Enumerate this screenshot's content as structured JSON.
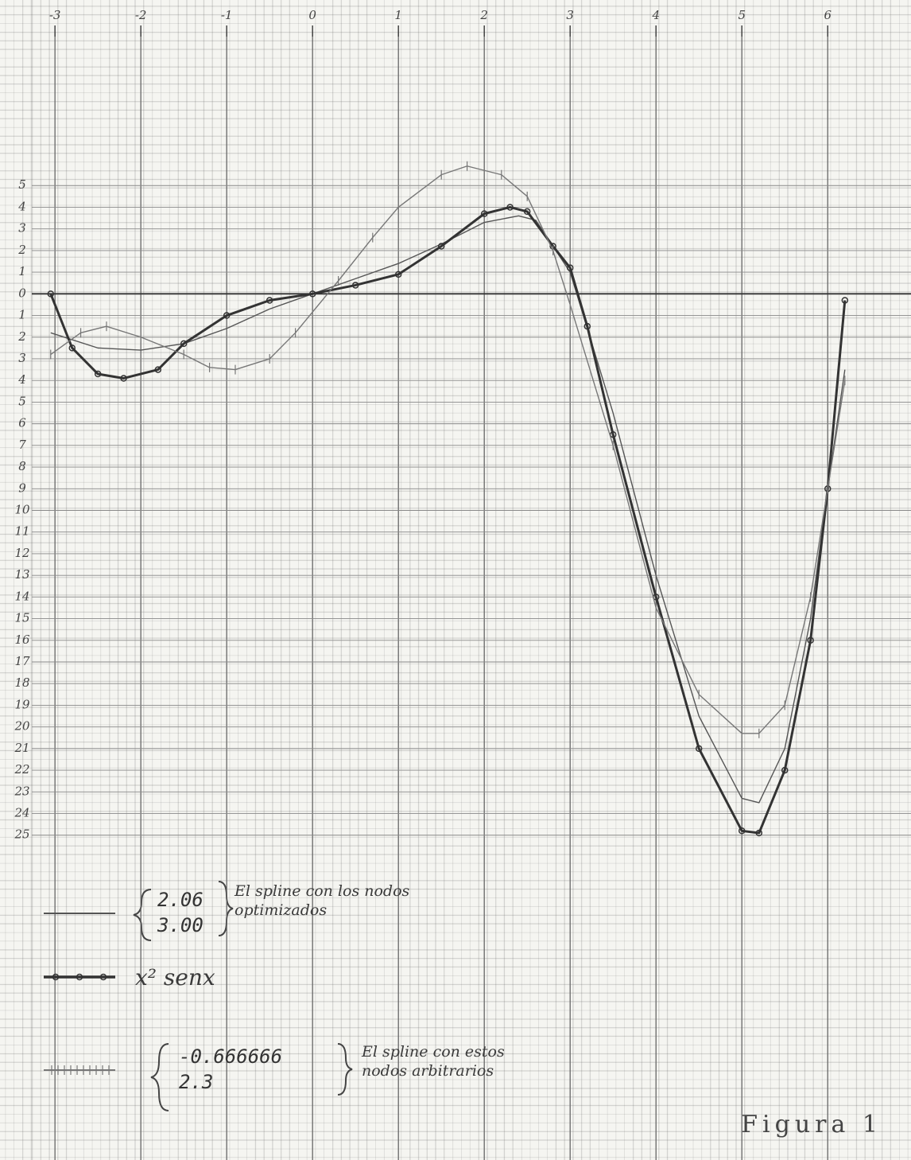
{
  "chart_data": {
    "type": "line",
    "annotation": "Figura 1",
    "xlim": [
      -3.27,
      6.97
    ],
    "ylim": [
      -40,
      12.1
    ],
    "xticks": [
      -3,
      -2,
      -1,
      0,
      1,
      2,
      3,
      4,
      5,
      6
    ],
    "yticks": [
      5,
      4,
      3,
      2,
      1,
      0,
      {
        "value": -1,
        "label": "1"
      },
      {
        "value": -2,
        "label": "2"
      },
      {
        "value": -3,
        "label": "3"
      },
      {
        "value": -4,
        "label": "4"
      },
      {
        "value": -5,
        "label": "5"
      },
      {
        "value": -6,
        "label": "6"
      },
      {
        "value": -7,
        "label": "7"
      },
      {
        "value": -8,
        "label": "8"
      },
      {
        "value": -9,
        "label": "9"
      },
      {
        "value": -10,
        "label": "10"
      },
      {
        "value": -11,
        "label": "11"
      },
      {
        "value": -12,
        "label": "12"
      },
      {
        "value": -13,
        "label": "13"
      },
      {
        "value": -14,
        "label": "14"
      },
      {
        "value": -15,
        "label": "15"
      },
      {
        "value": -16,
        "label": "16"
      },
      {
        "value": -17,
        "label": "17"
      },
      {
        "value": -18,
        "label": "18"
      },
      {
        "value": -19,
        "label": "19"
      },
      {
        "value": -20,
        "label": "20"
      },
      {
        "value": -21,
        "label": "21"
      },
      {
        "value": -22,
        "label": "22"
      },
      {
        "value": -23,
        "label": "23"
      },
      {
        "value": -24,
        "label": "24"
      },
      {
        "value": -25,
        "label": "25"
      }
    ],
    "grid": true,
    "series": [
      {
        "name": "El spline con los nodos optimizados",
        "nodes": [
          "2.06",
          "3.00"
        ],
        "color": "#555555",
        "width": 1.4,
        "marker": "none",
        "x": [
          -3.05,
          -2.5,
          -2.0,
          -1.5,
          -1.0,
          -0.5,
          0,
          0.5,
          1.0,
          1.5,
          2.0,
          2.4,
          2.6,
          3.0,
          3.5,
          4.0,
          4.5,
          5.0,
          5.2,
          5.5,
          5.8,
          6.0,
          6.2
        ],
        "values": [
          -1.8,
          -2.5,
          -2.6,
          -2.3,
          -1.6,
          -0.7,
          0,
          0.7,
          1.4,
          2.3,
          3.3,
          3.6,
          3.4,
          1.0,
          -5.5,
          -13,
          -19.5,
          -23.3,
          -23.5,
          -21,
          -15,
          -9,
          -3.5
        ]
      },
      {
        "name": "x² senx",
        "color": "#333333",
        "width": 3,
        "marker": "dot",
        "x": [
          -3.05,
          -2.8,
          -2.5,
          -2.2,
          -1.8,
          -1.5,
          -1.0,
          -0.5,
          0,
          0.5,
          1.0,
          1.5,
          2.0,
          2.3,
          2.5,
          2.8,
          3.0,
          3.2,
          3.5,
          4.0,
          4.5,
          5.0,
          5.2,
          5.5,
          5.8,
          6.0,
          6.2
        ],
        "values": [
          0,
          -2.5,
          -3.7,
          -3.9,
          -3.5,
          -2.3,
          -1.0,
          -0.3,
          0,
          0.4,
          0.9,
          2.2,
          3.7,
          4.0,
          3.8,
          2.2,
          1.2,
          -1.5,
          -6.5,
          -14,
          -21,
          -24.8,
          -24.9,
          -22,
          -16,
          -9,
          -0.3
        ]
      },
      {
        "name": "El spline con estos nodos arbitrarios",
        "nodes": [
          "-0.666666",
          "2.3"
        ],
        "color": "#777777",
        "width": 1.4,
        "marker": "cross",
        "x": [
          -3.05,
          -2.7,
          -2.4,
          -2.0,
          -1.5,
          -1.2,
          -0.9,
          -0.5,
          -0.2,
          0.3,
          0.7,
          1.0,
          1.5,
          1.8,
          2.2,
          2.5,
          2.8,
          3.0,
          3.5,
          4.0,
          4.5,
          5.0,
          5.2,
          5.5,
          5.8,
          6.0,
          6.2
        ],
        "values": [
          -2.8,
          -1.8,
          -1.5,
          -2.0,
          -2.8,
          -3.4,
          -3.5,
          -3.0,
          -1.8,
          0.6,
          2.6,
          4.0,
          5.5,
          5.9,
          5.5,
          4.5,
          2.0,
          -0.5,
          -7,
          -14.5,
          -18.5,
          -20.3,
          -20.3,
          -19,
          -14,
          -9,
          -4
        ]
      }
    ]
  }
}
